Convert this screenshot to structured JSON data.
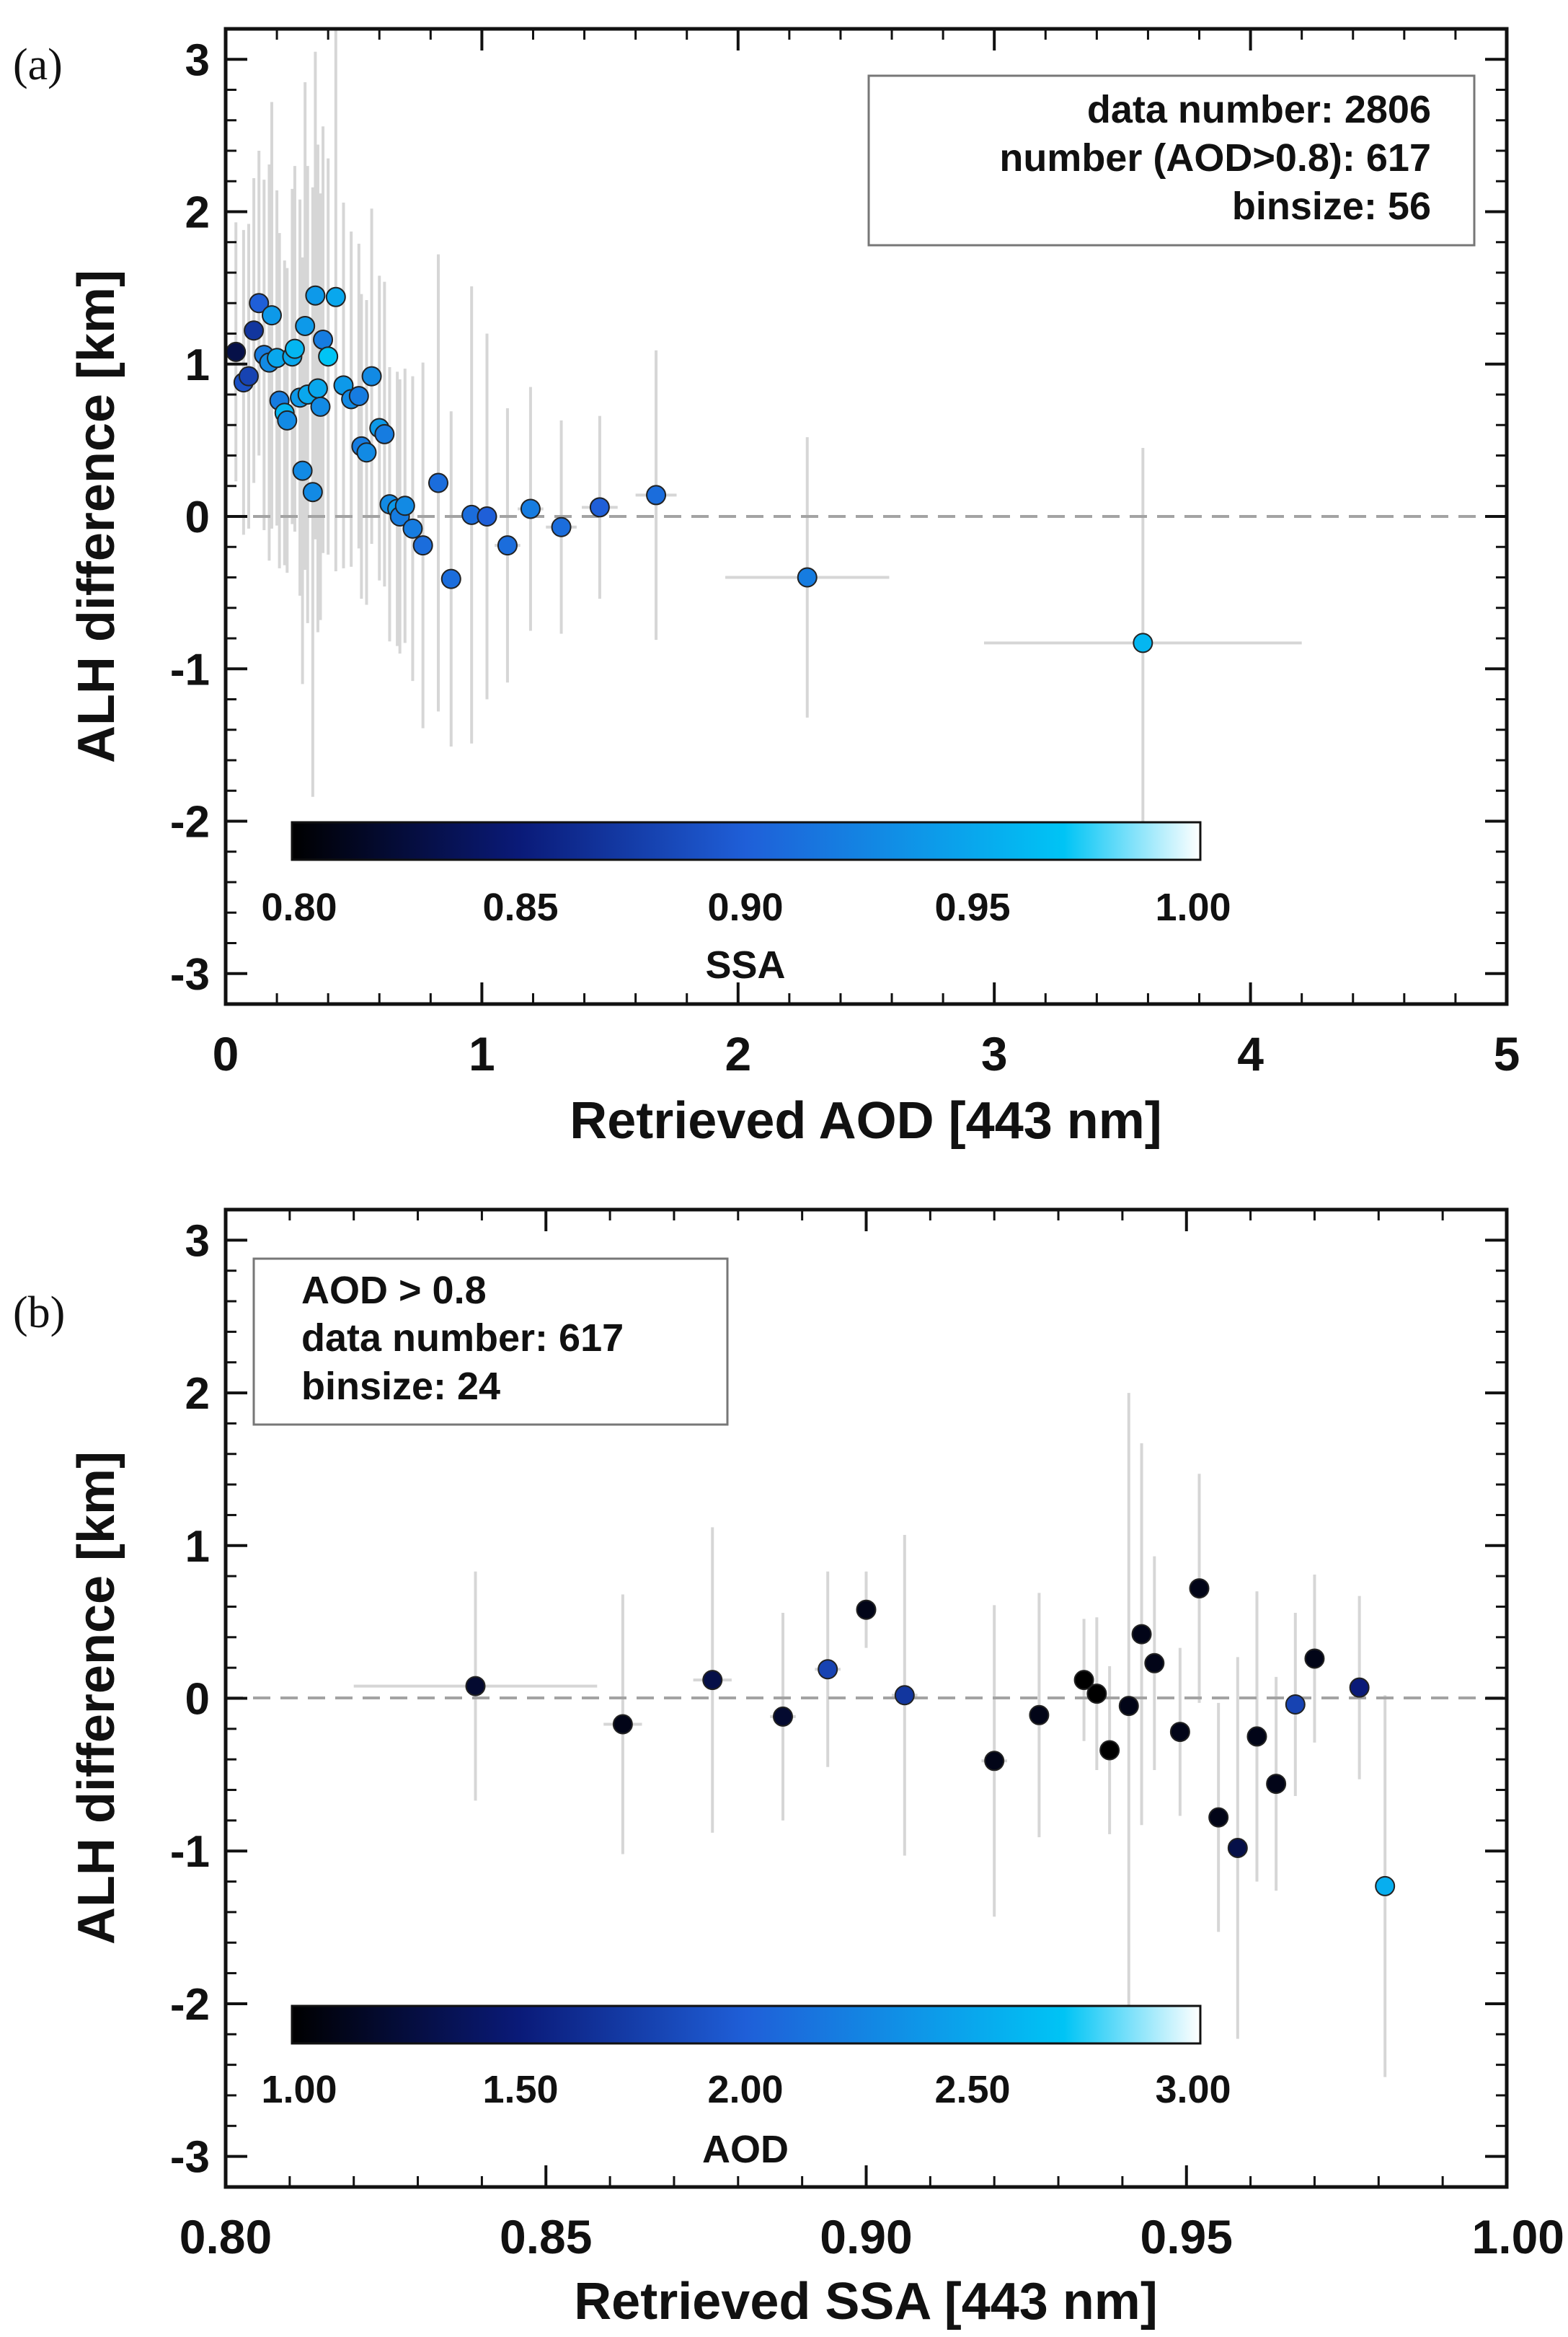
{
  "panels": [
    {
      "label": "(a)",
      "legend_lines": [
        "data number: 2806",
        "number (AOD>0.8):  617",
        "binsize: 56"
      ],
      "colorbar": {
        "title": "SSA",
        "tick_labels": [
          "0.80",
          "0.85",
          "0.90",
          "0.95",
          "1.00"
        ]
      }
    },
    {
      "label": "(b)",
      "legend_lines": [
        "AOD > 0.8",
        "data number:  617",
        "binsize: 24"
      ],
      "colorbar": {
        "title": "AOD",
        "tick_labels": [
          "1.00",
          "1.50",
          "2.00",
          "2.50",
          "3.00"
        ]
      }
    }
  ],
  "chart_data": [
    {
      "type": "scatter",
      "xlabel": "Retrieved AOD [443 nm]",
      "ylabel": "ALH difference [km]",
      "xlim": [
        0,
        5
      ],
      "ylim": [
        -3.2,
        3.2
      ],
      "xticks": [
        0,
        1,
        2,
        3,
        4,
        5
      ],
      "yticks": [
        -3,
        -2,
        -1,
        0,
        1,
        2,
        3
      ],
      "xtick_labels": [
        "0",
        "1",
        "2",
        "3",
        "4",
        "5"
      ],
      "ytick_labels": [
        "-3",
        "-2",
        "-1",
        "0",
        "1",
        "2",
        "3"
      ],
      "reference_line_y": 0,
      "error_bar_color": "#d6d6d6",
      "color_variable": "SSA",
      "color_range": [
        0.8,
        1.0
      ],
      "colormap": [
        "#000000",
        "#0a1a78",
        "#1f5fd8",
        "#00c4f5",
        "#ffffff"
      ],
      "points": [
        {
          "x": 0.04,
          "y": 1.08,
          "xerr": 0.03,
          "yerr": 0.85,
          "c": 0.83
        },
        {
          "x": 0.07,
          "y": 0.88,
          "xerr": 0.03,
          "yerr": 1.0,
          "c": 0.89
        },
        {
          "x": 0.09,
          "y": 0.92,
          "xerr": 0.03,
          "yerr": 1.0,
          "c": 0.88
        },
        {
          "x": 0.11,
          "y": 1.22,
          "xerr": 0.03,
          "yerr": 1.0,
          "c": 0.87
        },
        {
          "x": 0.13,
          "y": 1.4,
          "xerr": 0.03,
          "yerr": 1.0,
          "c": 0.9
        },
        {
          "x": 0.15,
          "y": 1.06,
          "xerr": 0.03,
          "yerr": 1.15,
          "c": 0.92
        },
        {
          "x": 0.17,
          "y": 1.01,
          "xerr": 0.03,
          "yerr": 1.3,
          "c": 0.93
        },
        {
          "x": 0.18,
          "y": 1.32,
          "xerr": 0.03,
          "yerr": 1.4,
          "c": 0.94
        },
        {
          "x": 0.2,
          "y": 1.04,
          "xerr": 0.03,
          "yerr": 1.1,
          "c": 0.95
        },
        {
          "x": 0.21,
          "y": 0.76,
          "xerr": 0.03,
          "yerr": 1.1,
          "c": 0.92
        },
        {
          "x": 0.23,
          "y": 0.68,
          "xerr": 0.03,
          "yerr": 1.0,
          "c": 0.96
        },
        {
          "x": 0.24,
          "y": 0.63,
          "xerr": 0.03,
          "yerr": 1.0,
          "c": 0.93
        },
        {
          "x": 0.26,
          "y": 1.05,
          "xerr": 0.03,
          "yerr": 1.1,
          "c": 0.95
        },
        {
          "x": 0.27,
          "y": 1.1,
          "xerr": 0.03,
          "yerr": 1.2,
          "c": 0.96
        },
        {
          "x": 0.29,
          "y": 0.78,
          "xerr": 0.03,
          "yerr": 1.3,
          "c": 0.94
        },
        {
          "x": 0.3,
          "y": 0.3,
          "xerr": 0.03,
          "yerr": 1.4,
          "c": 0.93
        },
        {
          "x": 0.31,
          "y": 1.25,
          "xerr": 0.03,
          "yerr": 1.6,
          "c": 0.94
        },
        {
          "x": 0.32,
          "y": 0.8,
          "xerr": 0.03,
          "yerr": 1.5,
          "c": 0.95
        },
        {
          "x": 0.34,
          "y": 0.16,
          "xerr": 0.03,
          "yerr": 2.0,
          "c": 0.93
        },
        {
          "x": 0.35,
          "y": 1.45,
          "xerr": 0.03,
          "yerr": 1.6,
          "c": 0.94
        },
        {
          "x": 0.36,
          "y": 0.84,
          "xerr": 0.03,
          "yerr": 1.6,
          "c": 0.95
        },
        {
          "x": 0.37,
          "y": 0.72,
          "xerr": 0.03,
          "yerr": 1.4,
          "c": 0.93
        },
        {
          "x": 0.38,
          "y": 1.16,
          "xerr": 0.03,
          "yerr": 1.4,
          "c": 0.92
        },
        {
          "x": 0.4,
          "y": 1.05,
          "xerr": 0.03,
          "yerr": 1.3,
          "c": 0.97
        },
        {
          "x": 0.43,
          "y": 1.44,
          "xerr": 0.03,
          "yerr": 1.8,
          "c": 0.95
        },
        {
          "x": 0.46,
          "y": 0.86,
          "xerr": 0.03,
          "yerr": 1.2,
          "c": 0.94
        },
        {
          "x": 0.49,
          "y": 0.77,
          "xerr": 0.03,
          "yerr": 1.1,
          "c": 0.93
        },
        {
          "x": 0.52,
          "y": 0.79,
          "xerr": 0.03,
          "yerr": 1.0,
          "c": 0.92
        },
        {
          "x": 0.53,
          "y": 0.46,
          "xerr": 0.03,
          "yerr": 1.0,
          "c": 0.92
        },
        {
          "x": 0.55,
          "y": 0.42,
          "xerr": 0.03,
          "yerr": 1.0,
          "c": 0.93
        },
        {
          "x": 0.57,
          "y": 0.92,
          "xerr": 0.03,
          "yerr": 1.1,
          "c": 0.93
        },
        {
          "x": 0.6,
          "y": 0.58,
          "xerr": 0.03,
          "yerr": 1.0,
          "c": 0.94
        },
        {
          "x": 0.62,
          "y": 0.54,
          "xerr": 0.03,
          "yerr": 1.0,
          "c": 0.92
        },
        {
          "x": 0.64,
          "y": 0.08,
          "xerr": 0.03,
          "yerr": 0.9,
          "c": 0.93
        },
        {
          "x": 0.67,
          "y": 0.05,
          "xerr": 0.03,
          "yerr": 0.9,
          "c": 0.94
        },
        {
          "x": 0.68,
          "y": 0.0,
          "xerr": 0.03,
          "yerr": 0.9,
          "c": 0.92
        },
        {
          "x": 0.7,
          "y": 0.07,
          "xerr": 0.03,
          "yerr": 0.9,
          "c": 0.93
        },
        {
          "x": 0.73,
          "y": -0.08,
          "xerr": 0.03,
          "yerr": 1.0,
          "c": 0.92
        },
        {
          "x": 0.77,
          "y": -0.19,
          "xerr": 0.03,
          "yerr": 1.2,
          "c": 0.91
        },
        {
          "x": 0.83,
          "y": 0.22,
          "xerr": 0.04,
          "yerr": 1.5,
          "c": 0.91
        },
        {
          "x": 0.88,
          "y": -0.41,
          "xerr": 0.04,
          "yerr": 1.1,
          "c": 0.91
        },
        {
          "x": 0.96,
          "y": 0.01,
          "xerr": 0.04,
          "yerr": 1.5,
          "c": 0.91
        },
        {
          "x": 1.02,
          "y": 0.0,
          "xerr": 0.04,
          "yerr": 1.2,
          "c": 0.9
        },
        {
          "x": 1.1,
          "y": -0.19,
          "xerr": 0.05,
          "yerr": 0.9,
          "c": 0.91
        },
        {
          "x": 1.19,
          "y": 0.05,
          "xerr": 0.05,
          "yerr": 0.8,
          "c": 0.92
        },
        {
          "x": 1.31,
          "y": -0.07,
          "xerr": 0.06,
          "yerr": 0.7,
          "c": 0.91
        },
        {
          "x": 1.46,
          "y": 0.06,
          "xerr": 0.07,
          "yerr": 0.6,
          "c": 0.9
        },
        {
          "x": 1.68,
          "y": 0.14,
          "xerr": 0.08,
          "yerr": 0.95,
          "c": 0.91
        },
        {
          "x": 2.27,
          "y": -0.4,
          "xerr": 0.32,
          "yerr": 0.92,
          "c": 0.92
        },
        {
          "x": 3.58,
          "y": -0.83,
          "xerr": 0.62,
          "yerr": 1.28,
          "c": 0.96
        }
      ]
    },
    {
      "type": "scatter",
      "xlabel": "Retrieved SSA [443 nm]",
      "ylabel": "ALH difference [km]",
      "xlim": [
        0.8,
        1.0
      ],
      "ylim": [
        -3.2,
        3.2
      ],
      "xticks": [
        0.8,
        0.85,
        0.9,
        0.95,
        1.0
      ],
      "yticks": [
        -3,
        -2,
        -1,
        0,
        1,
        2,
        3
      ],
      "xtick_labels": [
        "0.80",
        "0.85",
        "0.90",
        "0.95",
        "1.00"
      ],
      "ytick_labels": [
        "-3",
        "-2",
        "-1",
        "0",
        "1",
        "2",
        "3"
      ],
      "reference_line_y": 0,
      "error_bar_color": "#d6d6d6",
      "color_variable": "AOD",
      "color_range": [
        1.0,
        3.0
      ],
      "colormap": [
        "#000000",
        "#0a1a78",
        "#1f5fd8",
        "#00c4f5",
        "#ffffff"
      ],
      "points": [
        {
          "x": 0.839,
          "y": 0.08,
          "xerr": 0.019,
          "yerr": 0.75,
          "c": 1.2
        },
        {
          "x": 0.862,
          "y": -0.17,
          "xerr": 0.003,
          "yerr": 0.85,
          "c": 1.1
        },
        {
          "x": 0.876,
          "y": 0.12,
          "xerr": 0.003,
          "yerr": 1.0,
          "c": 1.3
        },
        {
          "x": 0.887,
          "y": -0.12,
          "xerr": 0.002,
          "yerr": 0.68,
          "c": 1.2
        },
        {
          "x": 0.894,
          "y": 0.19,
          "xerr": 0.002,
          "yerr": 0.64,
          "c": 1.8
        },
        {
          "x": 0.9,
          "y": 0.58,
          "xerr": 0.001,
          "yerr": 0.25,
          "c": 1.1
        },
        {
          "x": 0.906,
          "y": 0.02,
          "xerr": 0.002,
          "yerr": 1.05,
          "c": 1.7
        },
        {
          "x": 0.92,
          "y": -0.41,
          "xerr": 0.002,
          "yerr": 1.02,
          "c": 1.1
        },
        {
          "x": 0.927,
          "y": -0.11,
          "xerr": 0.001,
          "yerr": 0.8,
          "c": 1.1
        },
        {
          "x": 0.934,
          "y": 0.12,
          "xerr": 0.001,
          "yerr": 0.4,
          "c": 1.0
        },
        {
          "x": 0.936,
          "y": 0.03,
          "xerr": 0.001,
          "yerr": 0.5,
          "c": 1.0
        },
        {
          "x": 0.938,
          "y": -0.34,
          "xerr": 0.001,
          "yerr": 0.55,
          "c": 1.0
        },
        {
          "x": 0.941,
          "y": -0.05,
          "xerr": 0.001,
          "yerr": 2.05,
          "c": 1.1
        },
        {
          "x": 0.943,
          "y": 0.42,
          "xerr": 0.001,
          "yerr": 1.25,
          "c": 1.1
        },
        {
          "x": 0.945,
          "y": 0.23,
          "xerr": 0.001,
          "yerr": 0.7,
          "c": 1.1
        },
        {
          "x": 0.949,
          "y": -0.22,
          "xerr": 0.001,
          "yerr": 0.55,
          "c": 1.1
        },
        {
          "x": 0.952,
          "y": 0.72,
          "xerr": 0.001,
          "yerr": 0.75,
          "c": 1.1
        },
        {
          "x": 0.955,
          "y": -0.78,
          "xerr": 0.001,
          "yerr": 0.75,
          "c": 1.1
        },
        {
          "x": 0.958,
          "y": -0.98,
          "xerr": 0.001,
          "yerr": 1.25,
          "c": 1.3
        },
        {
          "x": 0.961,
          "y": -0.25,
          "xerr": 0.001,
          "yerr": 0.95,
          "c": 1.1
        },
        {
          "x": 0.964,
          "y": -0.56,
          "xerr": 0.001,
          "yerr": 0.7,
          "c": 1.1
        },
        {
          "x": 0.967,
          "y": -0.04,
          "xerr": 0.001,
          "yerr": 0.6,
          "c": 1.8
        },
        {
          "x": 0.97,
          "y": 0.26,
          "xerr": 0.001,
          "yerr": 0.55,
          "c": 1.1
        },
        {
          "x": 0.977,
          "y": 0.07,
          "xerr": 0.001,
          "yerr": 0.6,
          "c": 1.5
        },
        {
          "x": 0.981,
          "y": -1.23,
          "xerr": 0.001,
          "yerr": 1.25,
          "c": 2.55
        }
      ]
    }
  ]
}
